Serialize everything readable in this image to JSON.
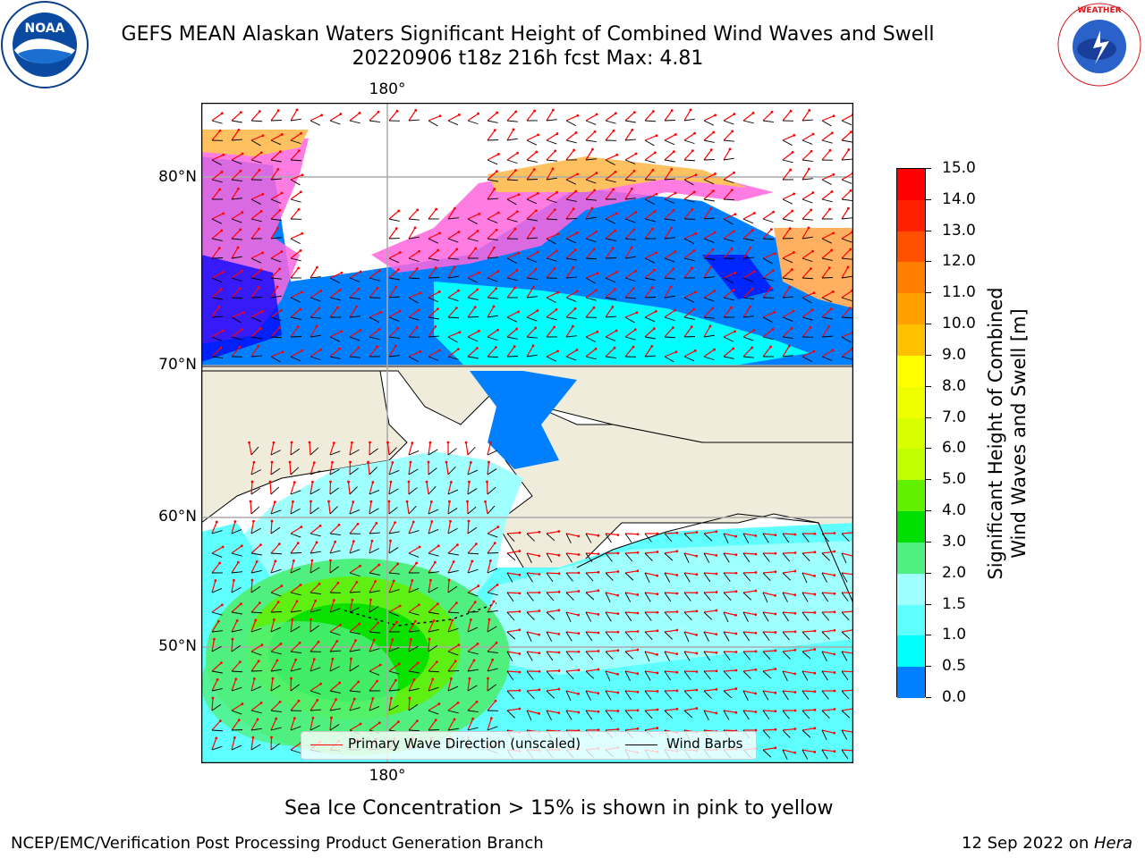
{
  "title": {
    "line1": "GEFS MEAN Alaskan Waters Significant Height of Combined Wind Waves and Swell",
    "line2": "20220906 t18z 216h fcst   Max: 4.81"
  },
  "logos": {
    "left": {
      "name": "noaa-logo",
      "text": "NOAA",
      "ring_text": "NATIONAL OCEANIC AND ATMOSPHERIC ADMINISTRATION · U.S. DEPARTMENT OF COMMERCE"
    },
    "right": {
      "name": "nws-logo",
      "ring_text": "NATIONAL WEATHER SERVICE"
    }
  },
  "map": {
    "lon_labels": {
      "top": "180°",
      "bottom": "180°"
    },
    "lat_labels": [
      "80°N",
      "70°N",
      "60°N",
      "50°N"
    ],
    "land_color": "#efecdc",
    "legend": {
      "primary_wave_label": "Primary Wave Direction (unscaled)",
      "primary_wave_color": "#ff0000",
      "wind_barbs_label": "Wind Barbs",
      "wind_barbs_color": "#000000"
    }
  },
  "colorbar": {
    "title_line1": "Significant Height of Combined",
    "title_line2": "Wind Waves and Swell [m]",
    "ticks": [
      "15.0",
      "14.0",
      "13.0",
      "12.0",
      "11.0",
      "10.0",
      "9.0",
      "8.0",
      "7.0",
      "6.0",
      "5.0",
      "4.0",
      "3.0",
      "2.0",
      "1.5",
      "1.0",
      "0.5",
      "0.0"
    ],
    "colors": [
      "#ff0000",
      "#ff2000",
      "#ff5000",
      "#ff8000",
      "#ffa000",
      "#ffc000",
      "#ffff00",
      "#f0ff00",
      "#d8ff00",
      "#c0ff00",
      "#60f000",
      "#00e000",
      "#50f080",
      "#a0ffff",
      "#60ffff",
      "#00ffff",
      "#0080ff",
      "#0000ff"
    ]
  },
  "sea_ice_note": "Sea Ice Concentration > 15% is shown in pink to yellow",
  "footer": {
    "left": "NCEP/EMC/Verification Post Processing Product Generation Branch",
    "right_date": "12 Sep 2022 on ",
    "right_host": "Hera"
  }
}
